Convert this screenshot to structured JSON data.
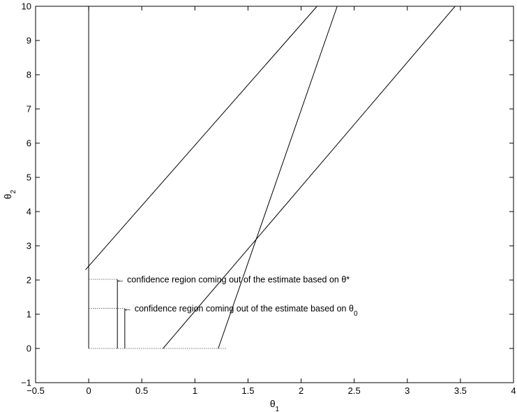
{
  "chart_data": {
    "type": "line",
    "xlim": [
      -0.5,
      4
    ],
    "ylim": [
      -1,
      10
    ],
    "xticks": [
      -0.5,
      0,
      0.5,
      1,
      1.5,
      2,
      2.5,
      3,
      3.5,
      4
    ],
    "yticks": [
      -1,
      0,
      1,
      2,
      3,
      4,
      5,
      6,
      7,
      8,
      9,
      10
    ],
    "xtick_labels": [
      "−0.5",
      "0",
      "0.5",
      "1",
      "1.5",
      "2",
      "2.5",
      "3",
      "3.5",
      "4"
    ],
    "ytick_labels": [
      "−1",
      "0",
      "1",
      "2",
      "3",
      "4",
      "5",
      "6",
      "7",
      "8",
      "9",
      "10"
    ],
    "xlabel": {
      "main": "θ",
      "sub": "1"
    },
    "ylabel": {
      "main": "θ",
      "sub": "2"
    },
    "grid": false,
    "series": [
      {
        "style": "solid",
        "points": [
          [
            0,
            0
          ],
          [
            0,
            10
          ]
        ]
      },
      {
        "style": "solid",
        "points": [
          [
            -0.03,
            2.3
          ],
          [
            2.15,
            10
          ]
        ]
      },
      {
        "style": "solid",
        "points": [
          [
            1.22,
            0
          ],
          [
            2.34,
            10
          ]
        ]
      },
      {
        "style": "solid",
        "points": [
          [
            0.7,
            0
          ],
          [
            3.45,
            10
          ]
        ]
      },
      {
        "style": "dotted",
        "points": [
          [
            0,
            0
          ],
          [
            1.3,
            0
          ]
        ]
      },
      {
        "style": "dotted",
        "points": [
          [
            0,
            2.02
          ],
          [
            0.27,
            2.02
          ]
        ]
      },
      {
        "style": "dotted",
        "points": [
          [
            0,
            1.17
          ],
          [
            0.34,
            1.17
          ]
        ]
      },
      {
        "style": "solid",
        "points": [
          [
            0.27,
            0
          ],
          [
            0.27,
            2.02
          ]
        ]
      },
      {
        "style": "solid",
        "points": [
          [
            0.34,
            0
          ],
          [
            0.34,
            1.17
          ]
        ]
      }
    ],
    "annotations": [
      {
        "text": "← confidence region coming out of the estimate based on θ*",
        "anchor": [
          0.27,
          2.02
        ]
      },
      {
        "text_main": "← confidence region coming out of the estimate based on θ",
        "text_sub": "0",
        "anchor": [
          0.34,
          1.17
        ]
      }
    ]
  }
}
